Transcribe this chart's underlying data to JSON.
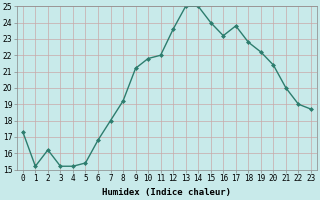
{
  "x": [
    0,
    1,
    2,
    3,
    4,
    5,
    6,
    7,
    8,
    9,
    10,
    11,
    12,
    13,
    14,
    15,
    16,
    17,
    18,
    19,
    20,
    21,
    22,
    23
  ],
  "y": [
    17.3,
    15.2,
    16.2,
    15.2,
    15.2,
    15.4,
    16.8,
    18.0,
    19.2,
    21.2,
    21.8,
    22.0,
    23.6,
    25.0,
    25.0,
    24.0,
    23.2,
    23.8,
    22.8,
    22.2,
    21.4,
    20.0,
    19.0,
    18.7
  ],
  "line_color": "#2d7d6e",
  "marker": "D",
  "marker_size": 2.0,
  "bg_color": "#c8eaea",
  "grid_color": "#c8a8a8",
  "xlabel": "Humidex (Indice chaleur)",
  "xlim": [
    -0.5,
    23.5
  ],
  "ylim": [
    15,
    25
  ],
  "yticks": [
    15,
    16,
    17,
    18,
    19,
    20,
    21,
    22,
    23,
    24,
    25
  ],
  "xtick_labels": [
    "0",
    "1",
    "2",
    "3",
    "4",
    "5",
    "6",
    "7",
    "8",
    "9",
    "10",
    "11",
    "12",
    "13",
    "14",
    "15",
    "16",
    "17",
    "18",
    "19",
    "20",
    "21",
    "22",
    "23"
  ],
  "xlabel_fontsize": 6.5,
  "tick_fontsize": 5.5,
  "line_width": 1.0
}
